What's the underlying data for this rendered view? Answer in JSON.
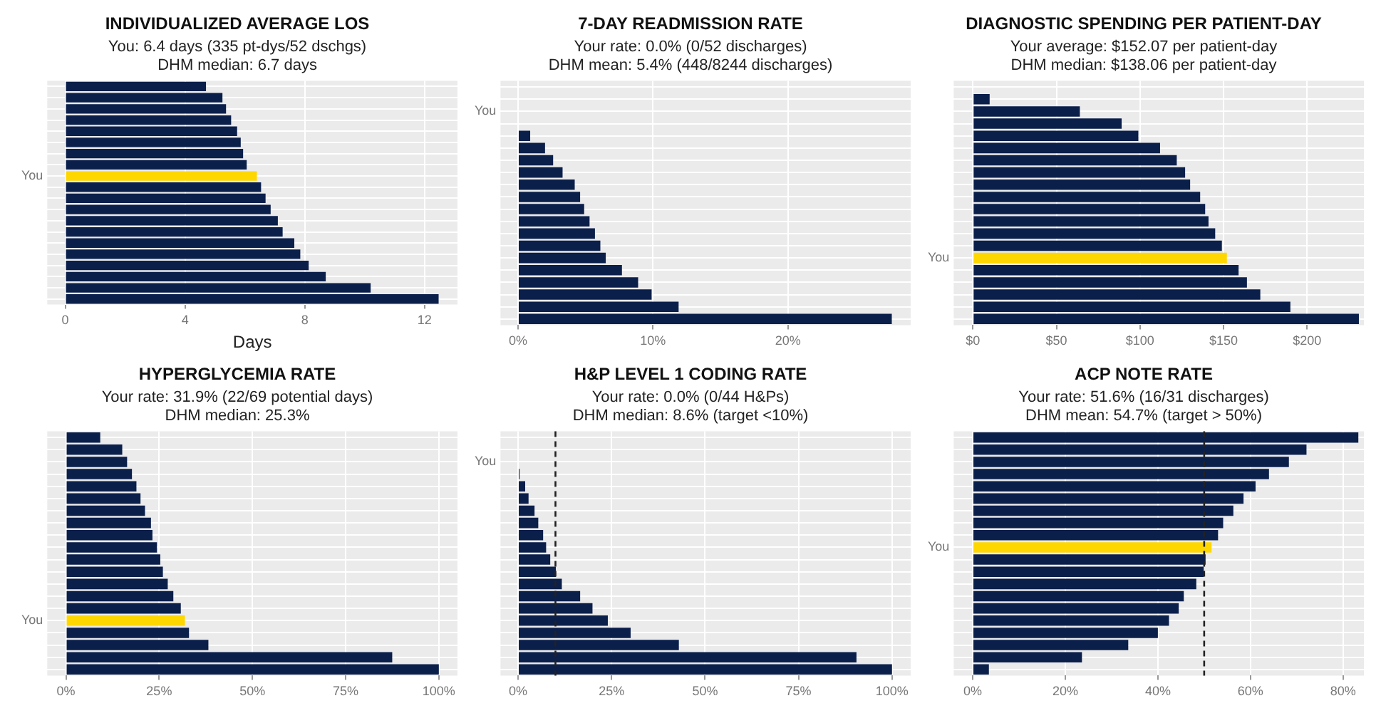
{
  "chart_data": [
    {
      "type": "bar",
      "orientation": "horizontal",
      "title": "INDIVIDUALIZED AVERAGE LOS",
      "subtitle": "You: 6.4 days (335 pt-dys/52 dschgs)\nDHM median: 6.7 days",
      "xlabel": "Days",
      "categories": [
        null,
        null,
        null,
        null,
        null,
        null,
        null,
        null,
        "You",
        null,
        null,
        null,
        null,
        null,
        null,
        null,
        null,
        null,
        null,
        null
      ],
      "values": [
        4.7,
        5.25,
        5.37,
        5.54,
        5.74,
        5.86,
        5.94,
        6.06,
        6.4,
        6.54,
        6.69,
        6.86,
        7.1,
        7.26,
        7.65,
        7.85,
        8.13,
        8.7,
        10.2,
        12.47
      ],
      "colors": [
        "#0b1f4b",
        "#0b1f4b",
        "#0b1f4b",
        "#0b1f4b",
        "#0b1f4b",
        "#0b1f4b",
        "#0b1f4b",
        "#0b1f4b",
        "#ffd700",
        "#0b1f4b",
        "#0b1f4b",
        "#0b1f4b",
        "#0b1f4b",
        "#0b1f4b",
        "#0b1f4b",
        "#0b1f4b",
        "#0b1f4b",
        "#0b1f4b",
        "#0b1f4b",
        "#0b1f4b"
      ],
      "xlim": [
        -0.6,
        13.1
      ],
      "xticks": [
        0,
        4,
        8,
        12
      ],
      "grid": true
    },
    {
      "type": "bar",
      "orientation": "horizontal",
      "title": "7-DAY READMISSION RATE",
      "subtitle": "Your rate: 0.0% (0/52 discharges)\nDHM mean: 5.4% (448/8244 discharges)",
      "categories": [
        null,
        null,
        "You",
        null,
        null,
        null,
        null,
        null,
        null,
        null,
        null,
        null,
        null,
        null,
        null,
        null,
        null,
        null,
        null,
        null
      ],
      "values": [
        0,
        0,
        0,
        0,
        0.9,
        2.0,
        2.6,
        3.3,
        4.2,
        4.6,
        4.9,
        5.3,
        5.7,
        6.1,
        6.5,
        7.7,
        8.9,
        9.9,
        11.9,
        27.7
      ],
      "colors": [
        "#0b1f4b",
        "#0b1f4b",
        "#ffd700",
        "#0b1f4b",
        "#0b1f4b",
        "#0b1f4b",
        "#0b1f4b",
        "#0b1f4b",
        "#0b1f4b",
        "#0b1f4b",
        "#0b1f4b",
        "#0b1f4b",
        "#0b1f4b",
        "#0b1f4b",
        "#0b1f4b",
        "#0b1f4b",
        "#0b1f4b",
        "#0b1f4b",
        "#0b1f4b",
        "#0b1f4b"
      ],
      "xlim": [
        -1.3,
        29.1
      ],
      "xticks": [
        {
          "value": 0,
          "label": "0%"
        },
        {
          "value": 10,
          "label": "10%"
        },
        {
          "value": 20,
          "label": "20%"
        }
      ],
      "grid": true
    },
    {
      "type": "bar",
      "orientation": "horizontal",
      "title": "DIAGNOSTIC SPENDING PER PATIENT-DAY",
      "subtitle": "Your average: $152.07 per patient-day\nDHM median: $138.06 per patient-day",
      "categories": [
        null,
        null,
        null,
        null,
        null,
        null,
        null,
        null,
        null,
        null,
        null,
        null,
        null,
        null,
        "You",
        null,
        null,
        null,
        null,
        null
      ],
      "values": [
        null,
        10,
        64,
        89,
        99,
        112,
        122,
        127,
        130,
        136,
        139,
        141,
        145,
        149,
        152,
        159,
        164,
        172,
        190,
        231
      ],
      "colors": [
        "#0b1f4b",
        "#0b1f4b",
        "#0b1f4b",
        "#0b1f4b",
        "#0b1f4b",
        "#0b1f4b",
        "#0b1f4b",
        "#0b1f4b",
        "#0b1f4b",
        "#0b1f4b",
        "#0b1f4b",
        "#0b1f4b",
        "#0b1f4b",
        "#0b1f4b",
        "#ffd700",
        "#0b1f4b",
        "#0b1f4b",
        "#0b1f4b",
        "#0b1f4b",
        "#0b1f4b"
      ],
      "xlim": [
        -11.5,
        234
      ],
      "xticks": [
        {
          "value": 0,
          "label": "$0"
        },
        {
          "value": 50,
          "label": "$50"
        },
        {
          "value": 100,
          "label": "$100"
        },
        {
          "value": 150,
          "label": "$150"
        },
        {
          "value": 200,
          "label": "$200"
        }
      ],
      "grid": true
    },
    {
      "type": "bar",
      "orientation": "horizontal",
      "title": "HYPERGLYCEMIA RATE",
      "subtitle": "Your rate: 31.9% (22/69 potential days)\nDHM median: 25.3%",
      "categories": [
        null,
        null,
        null,
        null,
        null,
        null,
        null,
        null,
        null,
        null,
        null,
        null,
        null,
        null,
        null,
        "You",
        null,
        null,
        null,
        null
      ],
      "values": [
        9.2,
        15.1,
        16.4,
        17.7,
        18.9,
        20.0,
        21.2,
        22.8,
        23.2,
        24.4,
        25.3,
        26.0,
        27.3,
        28.8,
        30.8,
        31.9,
        33.0,
        38.2,
        87.5,
        100
      ],
      "colors": [
        "#0b1f4b",
        "#0b1f4b",
        "#0b1f4b",
        "#0b1f4b",
        "#0b1f4b",
        "#0b1f4b",
        "#0b1f4b",
        "#0b1f4b",
        "#0b1f4b",
        "#0b1f4b",
        "#0b1f4b",
        "#0b1f4b",
        "#0b1f4b",
        "#0b1f4b",
        "#0b1f4b",
        "#ffd700",
        "#0b1f4b",
        "#0b1f4b",
        "#0b1f4b",
        "#0b1f4b"
      ],
      "xlim": [
        -5,
        105
      ],
      "xticks": [
        {
          "value": 0,
          "label": "0%"
        },
        {
          "value": 25,
          "label": "25%"
        },
        {
          "value": 50,
          "label": "50%"
        },
        {
          "value": 75,
          "label": "75%"
        },
        {
          "value": 100,
          "label": "100%"
        }
      ],
      "grid": true
    },
    {
      "type": "bar",
      "orientation": "horizontal",
      "title": "H&P LEVEL 1 CODING RATE",
      "subtitle": "Your rate: 0.0% (0/44 H&Ps)\nDHM median: 8.6% (target <10%)",
      "categories": [
        null,
        null,
        "You",
        null,
        null,
        null,
        null,
        null,
        null,
        null,
        null,
        null,
        null,
        null,
        null,
        null,
        null,
        null,
        null,
        null
      ],
      "values": [
        0,
        0,
        0,
        0.4,
        1.9,
        2.8,
        4.4,
        5.4,
        6.7,
        7.5,
        8.6,
        10.1,
        11.7,
        16.6,
        19.9,
        24.0,
        30.1,
        43.0,
        90.5,
        100
      ],
      "colors": [
        "#0b1f4b",
        "#0b1f4b",
        "#ffd700",
        "#0b1f4b",
        "#0b1f4b",
        "#0b1f4b",
        "#0b1f4b",
        "#0b1f4b",
        "#0b1f4b",
        "#0b1f4b",
        "#0b1f4b",
        "#0b1f4b",
        "#0b1f4b",
        "#0b1f4b",
        "#0b1f4b",
        "#0b1f4b",
        "#0b1f4b",
        "#0b1f4b",
        "#0b1f4b",
        "#0b1f4b"
      ],
      "xlim": [
        -4.7,
        105
      ],
      "xticks": [
        {
          "value": 0,
          "label": "0%"
        },
        {
          "value": 25,
          "label": "25%"
        },
        {
          "value": 50,
          "label": "50%"
        },
        {
          "value": 75,
          "label": "75%"
        },
        {
          "value": 100,
          "label": "100%"
        }
      ],
      "grid": true,
      "ref_lines": [
        {
          "axis": "x",
          "value": 10,
          "color": "#222222",
          "line_style": "dashed"
        }
      ]
    },
    {
      "type": "bar",
      "orientation": "horizontal",
      "title": "ACP NOTE RATE",
      "subtitle": "Your rate: 51.6% (16/31 discharges)\nDHM mean: 54.7% (target > 50%)",
      "categories": [
        null,
        null,
        null,
        null,
        null,
        null,
        null,
        null,
        null,
        "You",
        null,
        null,
        null,
        null,
        null,
        null,
        null,
        null,
        null,
        null
      ],
      "values": [
        83.3,
        72.1,
        68.3,
        64.0,
        61.1,
        58.5,
        56.3,
        54.1,
        53.0,
        51.6,
        50.3,
        49.9,
        48.3,
        45.6,
        44.5,
        42.4,
        40.0,
        33.6,
        23.6,
        3.5
      ],
      "colors": [
        "#0b1f4b",
        "#0b1f4b",
        "#0b1f4b",
        "#0b1f4b",
        "#0b1f4b",
        "#0b1f4b",
        "#0b1f4b",
        "#0b1f4b",
        "#0b1f4b",
        "#ffd700",
        "#0b1f4b",
        "#0b1f4b",
        "#0b1f4b",
        "#0b1f4b",
        "#0b1f4b",
        "#0b1f4b",
        "#0b1f4b",
        "#0b1f4b",
        "#0b1f4b",
        "#0b1f4b"
      ],
      "xlim": [
        -4.1,
        84.5
      ],
      "xticks": [
        {
          "value": 0,
          "label": "0%"
        },
        {
          "value": 20,
          "label": "20%"
        },
        {
          "value": 40,
          "label": "40%"
        },
        {
          "value": 60,
          "label": "60%"
        },
        {
          "value": 80,
          "label": "80%"
        }
      ],
      "grid": true,
      "ref_lines": [
        {
          "axis": "x",
          "value": 50,
          "color": "#222222",
          "line_style": "dashed"
        }
      ]
    }
  ]
}
